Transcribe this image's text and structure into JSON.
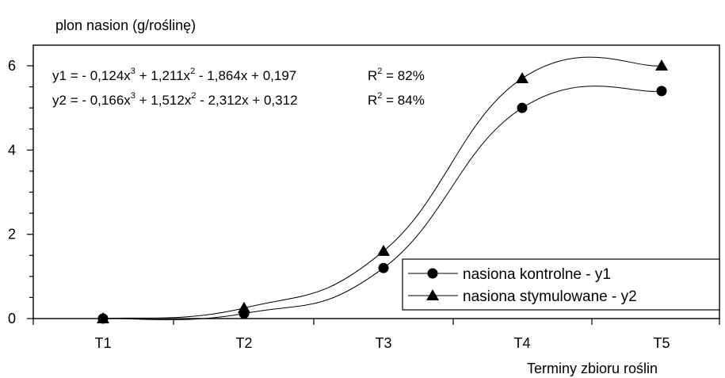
{
  "chart_data": {
    "type": "line",
    "title": "",
    "ylabel": "plon nasion (g/roślinę)",
    "xlabel": "Terminy zbioru roślin",
    "categories": [
      "T1",
      "T2",
      "T3",
      "T4",
      "T5"
    ],
    "ylim": [
      0,
      6.6
    ],
    "yticks": [
      "0",
      "2",
      "4",
      "6"
    ],
    "ytick_values": [
      0,
      2,
      4,
      6
    ],
    "grid": false,
    "legend_position": "bottom-right",
    "series": [
      {
        "name": "nasiona kontrolne  - y1",
        "marker": "circle",
        "color": "#000000",
        "values": [
          0.0,
          0.12,
          1.2,
          5.0,
          5.4
        ]
      },
      {
        "name": "nasiona stymulowane - y2",
        "marker": "triangle",
        "color": "#000000",
        "values": [
          0.0,
          0.25,
          1.6,
          5.7,
          6.0
        ]
      }
    ],
    "equations": [
      {
        "y_label": "y1",
        "eq": " = - 0,124x",
        "p3": "3",
        "t2": " + 1,211x",
        "p2": "2",
        "t3": " - 1,864x + 0,197",
        "r": "R",
        "rp": "2",
        "rv": " = 82%"
      },
      {
        "y_label": "y2",
        "eq": " = - 0,166x",
        "p3": "3",
        "t2": " + 1,512x",
        "p2": "2",
        "t3": " - 2,312x + 0,312",
        "r": "R",
        "rp": "2",
        "rv": " = 84%"
      }
    ]
  }
}
